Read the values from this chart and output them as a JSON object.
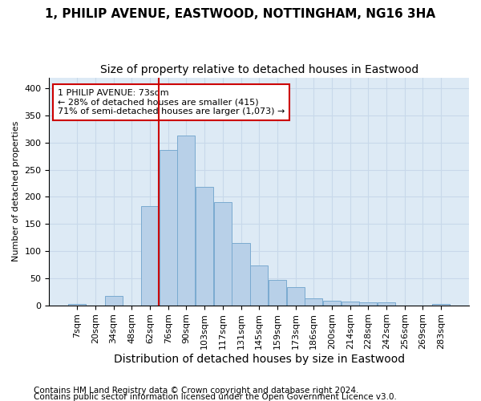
{
  "title1": "1, PHILIP AVENUE, EASTWOOD, NOTTINGHAM, NG16 3HA",
  "title2": "Size of property relative to detached houses in Eastwood",
  "xlabel": "Distribution of detached houses by size in Eastwood",
  "ylabel": "Number of detached properties",
  "bar_labels": [
    "7sqm",
    "20sqm",
    "34sqm",
    "48sqm",
    "62sqm",
    "76sqm",
    "90sqm",
    "103sqm",
    "117sqm",
    "131sqm",
    "145sqm",
    "159sqm",
    "173sqm",
    "186sqm",
    "200sqm",
    "214sqm",
    "228sqm",
    "242sqm",
    "256sqm",
    "269sqm",
    "283sqm"
  ],
  "bar_values": [
    2,
    0,
    17,
    0,
    183,
    287,
    313,
    218,
    190,
    115,
    73,
    46,
    34,
    13,
    8,
    7,
    5,
    5,
    0,
    0,
    3
  ],
  "bar_color": "#b8d0e8",
  "bar_edge_color": "#7aaad0",
  "annotation_text": "1 PHILIP AVENUE: 73sqm\n← 28% of detached houses are smaller (415)\n71% of semi-detached houses are larger (1,073) →",
  "annotation_box_color": "#ffffff",
  "annotation_box_edge": "#cc0000",
  "vline_color": "#cc0000",
  "vline_x_index": 5,
  "ylim": [
    0,
    420
  ],
  "yticks": [
    0,
    50,
    100,
    150,
    200,
    250,
    300,
    350,
    400
  ],
  "grid_color": "#c8d8ea",
  "bg_color": "#ddeaf5",
  "footer1": "Contains HM Land Registry data © Crown copyright and database right 2024.",
  "footer2": "Contains public sector information licensed under the Open Government Licence v3.0.",
  "title1_fontsize": 11,
  "title2_fontsize": 10,
  "xlabel_fontsize": 10,
  "ylabel_fontsize": 8,
  "tick_fontsize": 8,
  "footer_fontsize": 7.5
}
